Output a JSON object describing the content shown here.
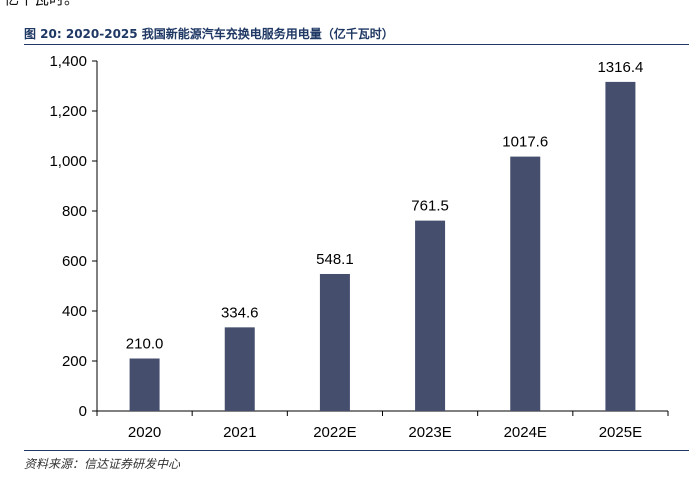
{
  "top_fragment": "亿千瓦时。",
  "figure_title": "图 20:  2020-2025 我国新能源汽车充换电服务用电量（亿千瓦时）",
  "source": "资料来源：信达证券研发中心",
  "colors": {
    "bar": "#464e6e",
    "title": "#1f3864",
    "axis": "#000000"
  },
  "chart_data": {
    "type": "bar",
    "title": "2020-2025 我国新能源汽车充换电服务用电量（亿千瓦时）",
    "xlabel": "",
    "ylabel": "",
    "categories": [
      "2020",
      "2021",
      "2022E",
      "2023E",
      "2024E",
      "2025E"
    ],
    "values": [
      210.0,
      334.6,
      548.1,
      761.5,
      1017.6,
      1316.4
    ],
    "value_labels": [
      "210.0",
      "334.6",
      "548.1",
      "761.5",
      "1017.6",
      "1316.4"
    ],
    "ylim": [
      0,
      1400
    ],
    "yticks": [
      0,
      200,
      400,
      600,
      800,
      1000,
      1200,
      1400
    ],
    "ytick_labels": [
      "0",
      "200",
      "400",
      "600",
      "800",
      "1,000",
      "1,200",
      "1,400"
    ],
    "grid": false,
    "legend": "none"
  }
}
